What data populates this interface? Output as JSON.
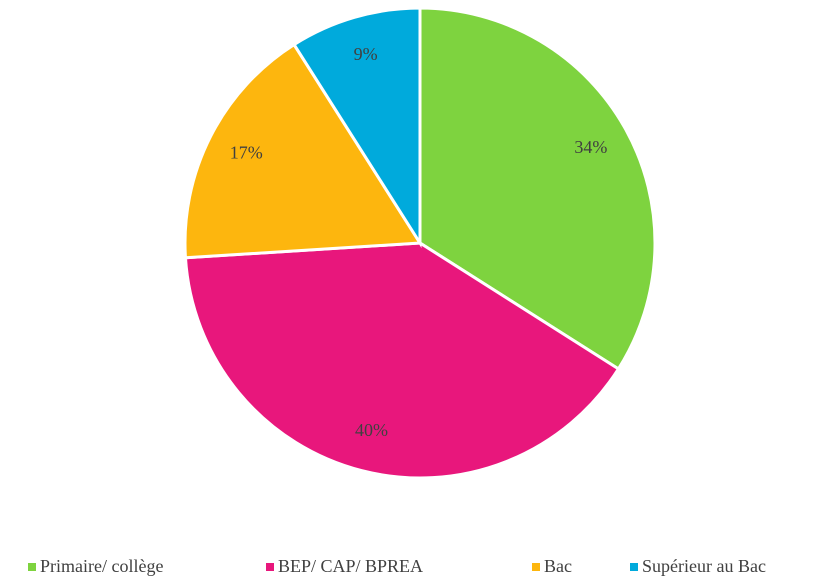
{
  "chart_data": {
    "type": "pie",
    "categories": [
      "Primaire/ collège",
      "BEP/ CAP/ BPREA",
      "Bac",
      "Supérieur au Bac"
    ],
    "values": [
      34,
      40,
      17,
      9
    ],
    "value_labels": [
      "34%",
      "40%",
      "17%",
      "9%"
    ],
    "colors": [
      "#7ed33f",
      "#e8177c",
      "#fdb60e",
      "#00aadc"
    ],
    "legend": "bottom"
  }
}
